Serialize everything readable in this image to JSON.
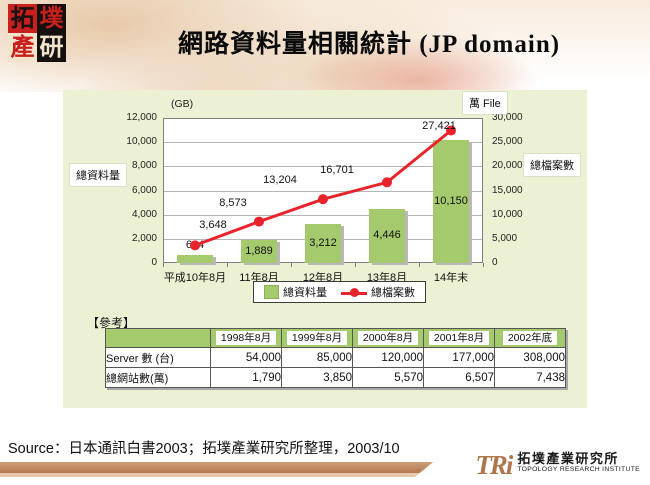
{
  "header": {
    "title": "網路資料量相關統計 (JP domain)",
    "seal_cells": [
      {
        "ch": "拓",
        "fg": "#1a1111",
        "bg": "#c8201d"
      },
      {
        "ch": "墣",
        "fg": "#c8201d",
        "bg": "#141010"
      },
      {
        "ch": "產",
        "fg": "#c8201d",
        "bg": "#f2e3cd"
      },
      {
        "ch": "研",
        "fg": "#f2e3cd",
        "bg": "#141010"
      }
    ]
  },
  "chart_data": {
    "type": "bar+line combo",
    "categories": [
      "平成10年8月",
      "11年8月",
      "12年8月",
      "13年8月",
      "14年末"
    ],
    "series": [
      {
        "name": "總資料量",
        "type": "bar",
        "axis": "left",
        "color": "#a5ca6e",
        "values": [
          664,
          1889,
          3212,
          4446,
          10150
        ]
      },
      {
        "name": "總檔案數",
        "type": "line",
        "axis": "right",
        "color": "#e8232b",
        "values": [
          3648,
          8573,
          13204,
          16701,
          27421
        ]
      }
    ],
    "left_axis": {
      "title": "(GB)",
      "min": 0,
      "max": 12000,
      "step": 2000,
      "side_label": "總資料量"
    },
    "right_axis": {
      "title": "萬 File",
      "min": 0,
      "max": 30000,
      "step": 5000,
      "side_label": "總檔案數"
    },
    "legend": [
      {
        "label": "總資料量",
        "marker": "bar"
      },
      {
        "label": "總檔案數",
        "marker": "line"
      }
    ],
    "grid": "horizontal",
    "legend_position": "bottom"
  },
  "ref_table": {
    "caption": "【參考】",
    "col_headers": [
      "1998年8月",
      "1999年8月",
      "2000年8月",
      "2001年8月",
      "2002年底"
    ],
    "rows": [
      {
        "label": "Server 數 (台)",
        "values": [
          "54,000",
          "85,000",
          "120,000",
          "177,000",
          "308,000"
        ]
      },
      {
        "label": "總網站數(萬)",
        "values": [
          "1,790",
          "3,850",
          "5,570",
          "6,507",
          "7,438"
        ]
      }
    ]
  },
  "footer": {
    "source": "Source：日本通訊白書2003；拓墣產業研究所整理，2003/10",
    "logo": {
      "acronym": "TRi",
      "cn": "拓墣產業研究所",
      "en": "TOPOLOGY RESEARCH INSTITUTE"
    }
  },
  "colors": {
    "panel_bg": "#edf1d3",
    "bar_green": "#a5ca6e",
    "line_red": "#e8232b",
    "table_header_green": "#a5ca6e",
    "footer_bar_brown": "#bd8a63",
    "tri_brown": "#ad764b"
  }
}
